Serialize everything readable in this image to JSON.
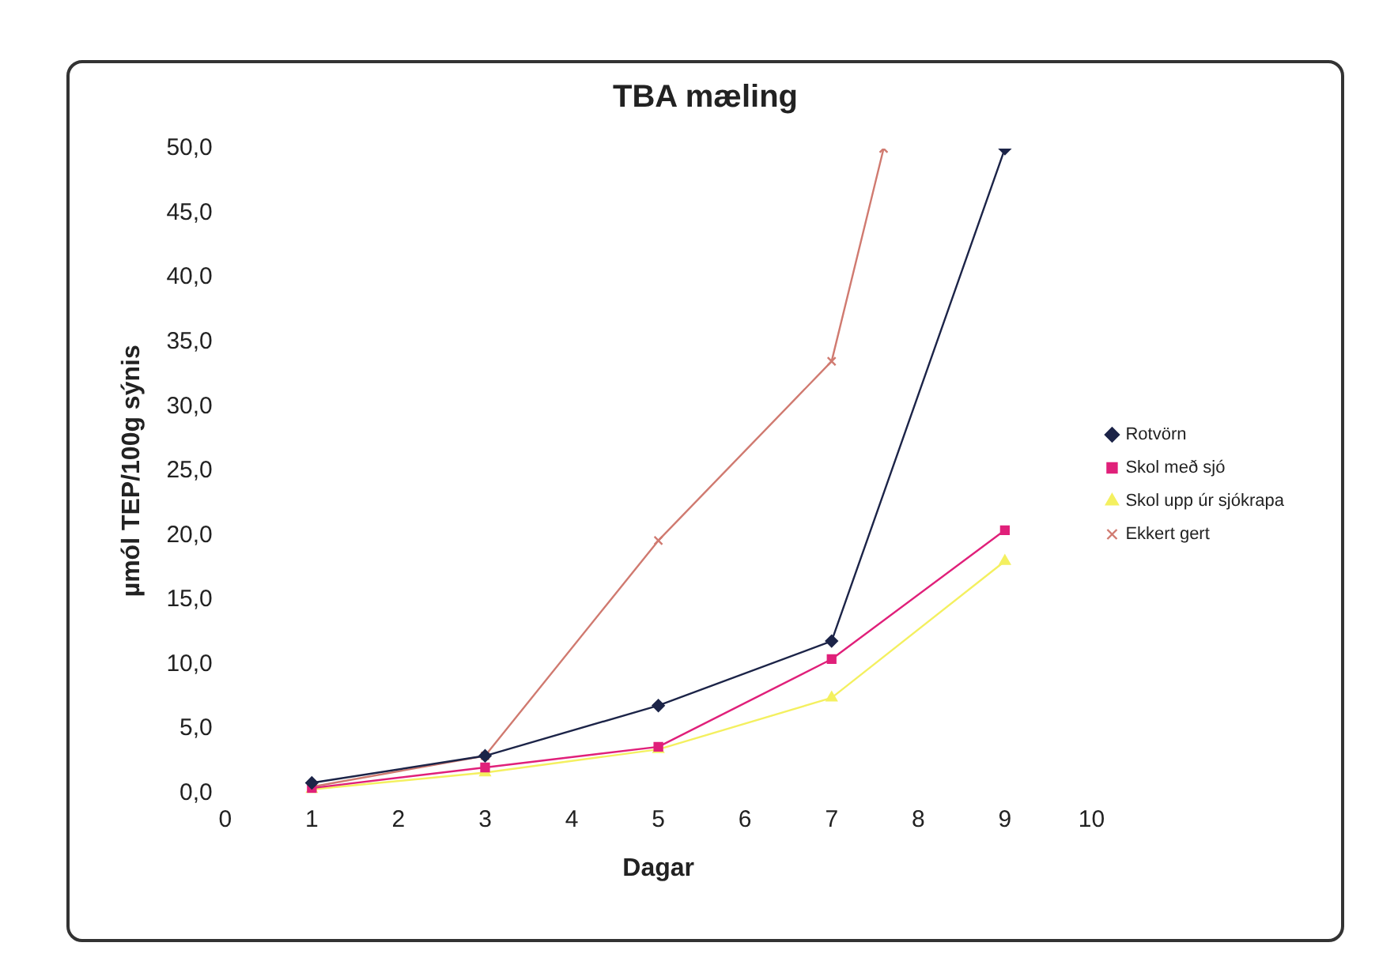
{
  "chart_data": {
    "type": "line",
    "title": "TBA mæling",
    "xlabel": "Dagar",
    "ylabel": "µmól TEP/100g sýnis",
    "xlim": [
      0,
      10
    ],
    "xticks": [
      0,
      1,
      2,
      3,
      4,
      5,
      6,
      7,
      8,
      9,
      10
    ],
    "ylim": [
      0,
      50
    ],
    "yticks": [
      {
        "value": 0,
        "label": "0,0"
      },
      {
        "value": 5,
        "label": "5,0"
      },
      {
        "value": 10,
        "label": "10,0"
      },
      {
        "value": 15,
        "label": "15,0"
      },
      {
        "value": 20,
        "label": "20,0"
      },
      {
        "value": 25,
        "label": "25,0"
      },
      {
        "value": 30,
        "label": "30,0"
      },
      {
        "value": 35,
        "label": "35,0"
      },
      {
        "value": 40,
        "label": "40,0"
      },
      {
        "value": 45,
        "label": "45,0"
      },
      {
        "value": 50,
        "label": "50,0"
      }
    ],
    "grid": false,
    "legend": "right",
    "series": [
      {
        "name": "Rotvörn",
        "color": "#1c2448",
        "marker": "diamond",
        "x": [
          1,
          3,
          5,
          7,
          9
        ],
        "values": [
          0.8,
          2.9,
          6.8,
          11.8,
          50
        ]
      },
      {
        "name": "Skol með sjó",
        "color": "#e0207a",
        "marker": "square",
        "x": [
          1,
          3,
          5,
          7,
          9
        ],
        "values": [
          0.4,
          2.0,
          3.6,
          10.4,
          20.4
        ]
      },
      {
        "name": "Skol upp úr sjókrapa",
        "color": "#f4f060",
        "marker": "triangle",
        "x": [
          1,
          3,
          5,
          7,
          9
        ],
        "values": [
          0.3,
          1.6,
          3.4,
          7.4,
          18.0
        ]
      },
      {
        "name": "Ekkert gert",
        "color": "#d07a70",
        "marker": "cross",
        "x": [
          1,
          3,
          5,
          7,
          7.6
        ],
        "values": [
          0.5,
          2.9,
          19.6,
          33.5,
          50
        ]
      }
    ]
  }
}
